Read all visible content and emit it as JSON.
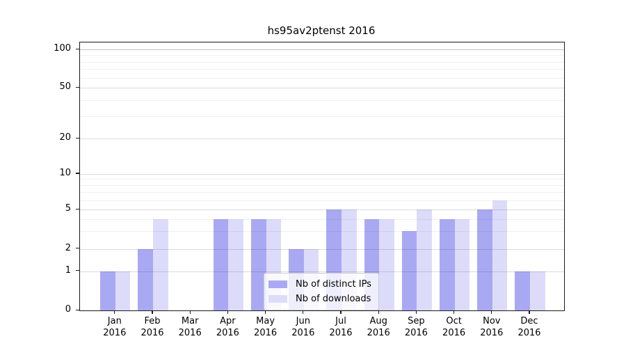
{
  "chart_data": {
    "type": "bar",
    "title": "hs95av2ptenst 2016",
    "xlabel": "",
    "ylabel": "",
    "year": "2016",
    "months": [
      "Jan",
      "Feb",
      "Mar",
      "Apr",
      "May",
      "Jun",
      "Jul",
      "Aug",
      "Sep",
      "Oct",
      "Nov",
      "Dec"
    ],
    "categories": [
      "Jan 2016",
      "Feb 2016",
      "Mar 2016",
      "Apr 2016",
      "May 2016",
      "Jun 2016",
      "Jul 2016",
      "Aug 2016",
      "Sep 2016",
      "Oct 2016",
      "Nov 2016",
      "Dec 2016"
    ],
    "series": [
      {
        "name": "Nb of distinct IPs",
        "color": "#a9a9f3",
        "values": [
          1,
          2,
          0,
          4,
          4,
          2,
          5,
          4,
          3,
          4,
          5,
          1
        ]
      },
      {
        "name": "Nb of downloads",
        "color": "#dcdcfa",
        "values": [
          1,
          4,
          0,
          4,
          4,
          2,
          5,
          4,
          5,
          4,
          6,
          1
        ]
      }
    ],
    "y_scale": "symlog",
    "ylim": [
      0,
      100
    ],
    "y_ticks": [
      0,
      1,
      2,
      5,
      10,
      20,
      50,
      100
    ],
    "y_minor_gridlines": [
      3,
      4,
      6,
      7,
      8,
      9,
      30,
      40,
      60,
      70,
      80,
      90
    ],
    "grid": true,
    "legend_position": "lower center"
  }
}
